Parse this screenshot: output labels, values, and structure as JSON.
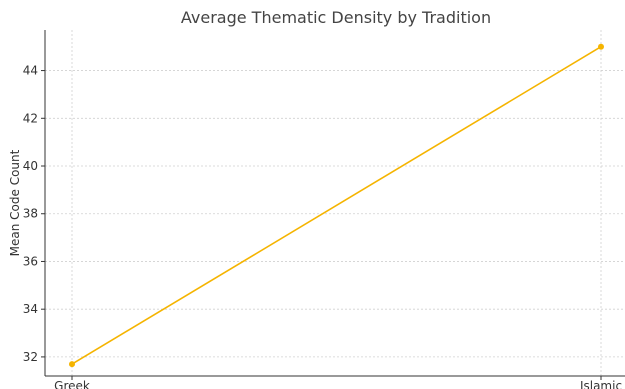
{
  "chart_data": {
    "type": "line",
    "title": "Average Thematic Density by Tradition",
    "xlabel": "",
    "ylabel": "Mean Code Count",
    "categories": [
      "Greek",
      "Islamic"
    ],
    "series": [
      {
        "values": [
          31.7,
          45.0
        ],
        "color": "#f5b400"
      }
    ],
    "ylim": [
      31.2,
      45.7
    ],
    "yticks": [
      32,
      34,
      36,
      38,
      40,
      42,
      44
    ],
    "grid": true,
    "marker": "circle"
  }
}
